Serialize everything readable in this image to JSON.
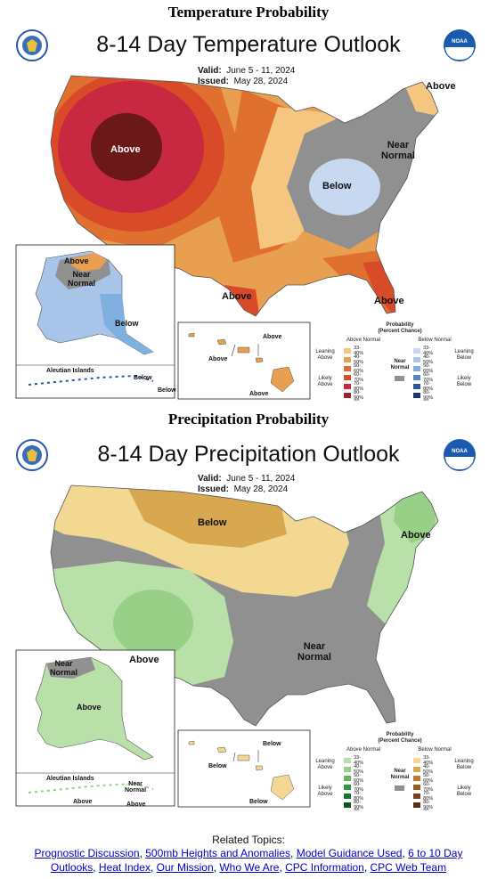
{
  "temperature": {
    "section_title": "Temperature Probability",
    "map_title": "8-14 Day Temperature Outlook",
    "valid_label": "Valid:",
    "valid_value": "June 5 - 11, 2024",
    "issued_label": "Issued:",
    "issued_value": "May 28, 2024",
    "labels": {
      "above_west": "Above",
      "above_ne": "Above",
      "near_normal": "Near\nNormal",
      "below": "Below",
      "above_tx": "Above",
      "above_fl": "Above",
      "ak_above": "Above",
      "ak_near": "Near\nNormal",
      "ak_below": "Below",
      "aleutian": "Aleutian Islands",
      "aleut_below1": "Below",
      "aleut_below2": "Below",
      "hi_above1": "Above",
      "hi_above2": "Above",
      "hi_above3": "Above"
    },
    "legend": {
      "title": "Probability\n(Percent Chance)",
      "left_head": "Above Normal",
      "right_head": "Below Normal",
      "near_label": "Near\nNormal",
      "leaning_left": "Leaning\nAbove",
      "likely_left": "Likely\nAbove",
      "leaning_right": "Leaning\nBelow",
      "likely_right": "Likely\nBelow",
      "ranges": [
        "33-40%",
        "40-50%",
        "50-60%",
        "60-70%",
        "70-80%",
        "80-90%",
        "90-100%"
      ],
      "left_colors": [
        "#f4c680",
        "#e8a050",
        "#e07030",
        "#d84a28",
        "#c82840",
        "#a02028",
        "#6a1818"
      ],
      "right_colors": [
        "#c8d8f0",
        "#a8c4e8",
        "#7fb0e0",
        "#4f88c8",
        "#2858a0",
        "#183878",
        "#101850"
      ],
      "near_color": "#909090"
    }
  },
  "precipitation": {
    "section_title": "Precipitation Probability",
    "map_title": "8-14 Day Precipitation Outlook",
    "valid_label": "Valid:",
    "valid_value": "June 5 - 11, 2024",
    "issued_label": "Issued:",
    "issued_value": "May 28, 2024",
    "labels": {
      "below": "Below",
      "above_ne": "Above",
      "above_sw": "Above",
      "near_normal": "Near\nNormal",
      "ak_near": "Near\nNormal",
      "ak_above": "Above",
      "aleutian": "Aleutian Islands",
      "aleut_near": "Near\nNormal",
      "aleut_above1": "Above",
      "aleut_above2": "Above",
      "hi_below1": "Below",
      "hi_below2": "Below",
      "hi_below3": "Below"
    },
    "legend": {
      "title": "Probability\n(Percent Chance)",
      "left_head": "Above Normal",
      "right_head": "Below Normal",
      "near_label": "Near\nNormal",
      "leaning_left": "Leaning\nAbove",
      "likely_left": "Likely\nAbove",
      "leaning_right": "Leaning\nBelow",
      "likely_right": "Likely\nBelow",
      "ranges": [
        "33-40%",
        "40-50%",
        "50-60%",
        "60-70%",
        "70-80%",
        "80-90%",
        "90-100%"
      ],
      "left_colors": [
        "#b8e0a8",
        "#98d088",
        "#60b858",
        "#309840",
        "#107830",
        "#0a5820",
        "#063818"
      ],
      "right_colors": [
        "#f2d890",
        "#d8a850",
        "#b87a30",
        "#985a20",
        "#784018",
        "#582c10",
        "#3a1c08"
      ],
      "near_color": "#909090"
    }
  },
  "related": {
    "heading": "Related Topics:",
    "links": [
      "Prognostic Discussion",
      "500mb Heights and Anomalies",
      "Model Guidance Used",
      "6 to 10 Day Outlooks",
      "Heat Index",
      "Our Mission",
      "Who We Are",
      "CPC Information",
      "CPC Web Team"
    ]
  }
}
